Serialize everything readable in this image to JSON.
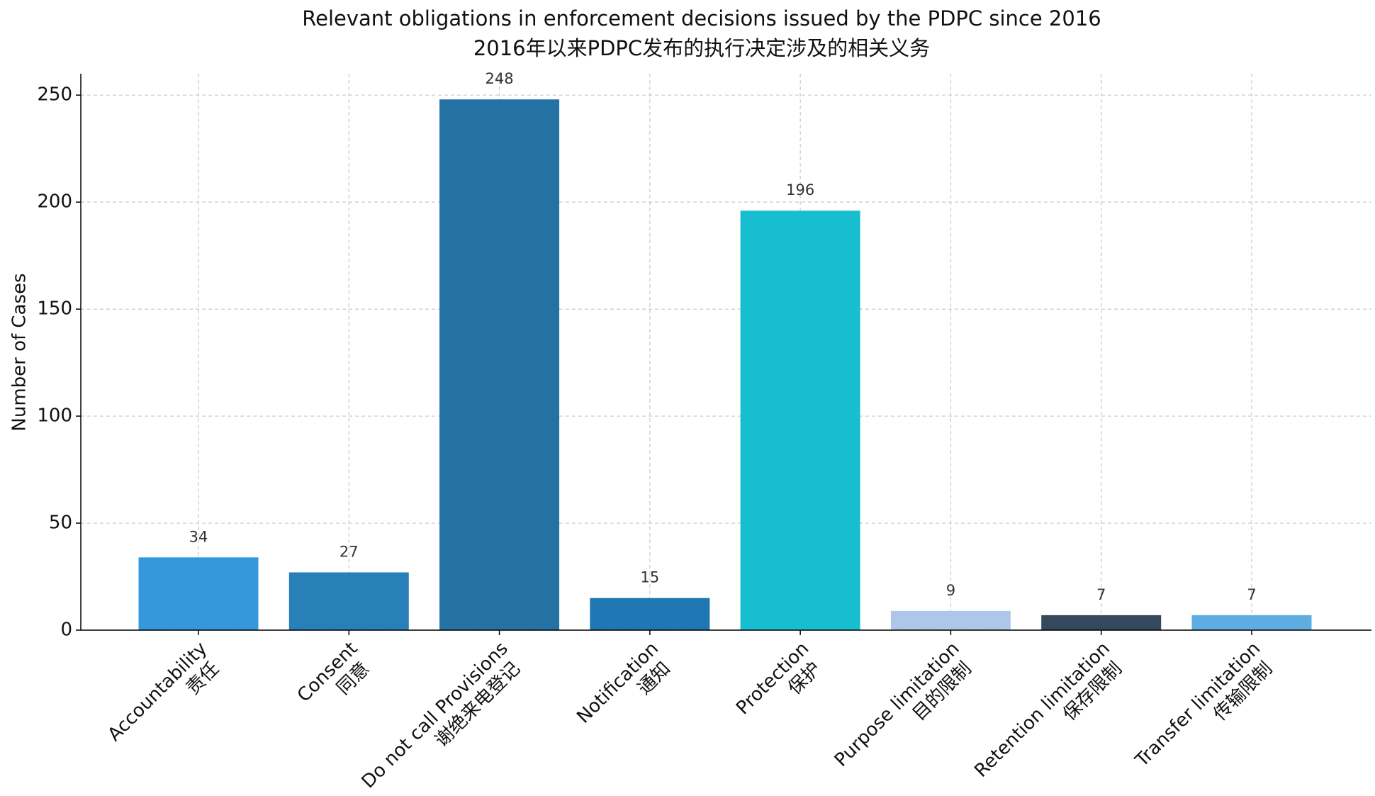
{
  "chart_data": {
    "type": "bar",
    "title": "Relevant obligations in enforcement decisions issued by the PDPC since 2016",
    "subtitle": "2016年以来PDPC发布的执行决定涉及的相关义务",
    "y_label": "Number of Cases",
    "categories": [
      "Accountability",
      "Consent",
      "Do not call Provisions",
      "Notification",
      "Protection",
      "Purpose limitation",
      "Retention limitation",
      "Transfer limitation"
    ],
    "categories_zh": [
      "责任",
      "同意",
      "谢绝来电登记",
      "通知",
      "保护",
      "目的限制",
      "保存限制",
      "传输限制"
    ],
    "values": [
      34,
      27,
      248,
      15,
      196,
      9,
      7,
      7
    ],
    "colors": [
      "#3498db",
      "#2980b9",
      "#2471a3",
      "#1f78b4",
      "#17becf",
      "#aec7e8",
      "#34495e",
      "#5dade2"
    ],
    "ylim": [
      0,
      260
    ],
    "yticks": [
      0,
      50,
      100,
      150,
      200,
      250
    ],
    "grid": true
  }
}
